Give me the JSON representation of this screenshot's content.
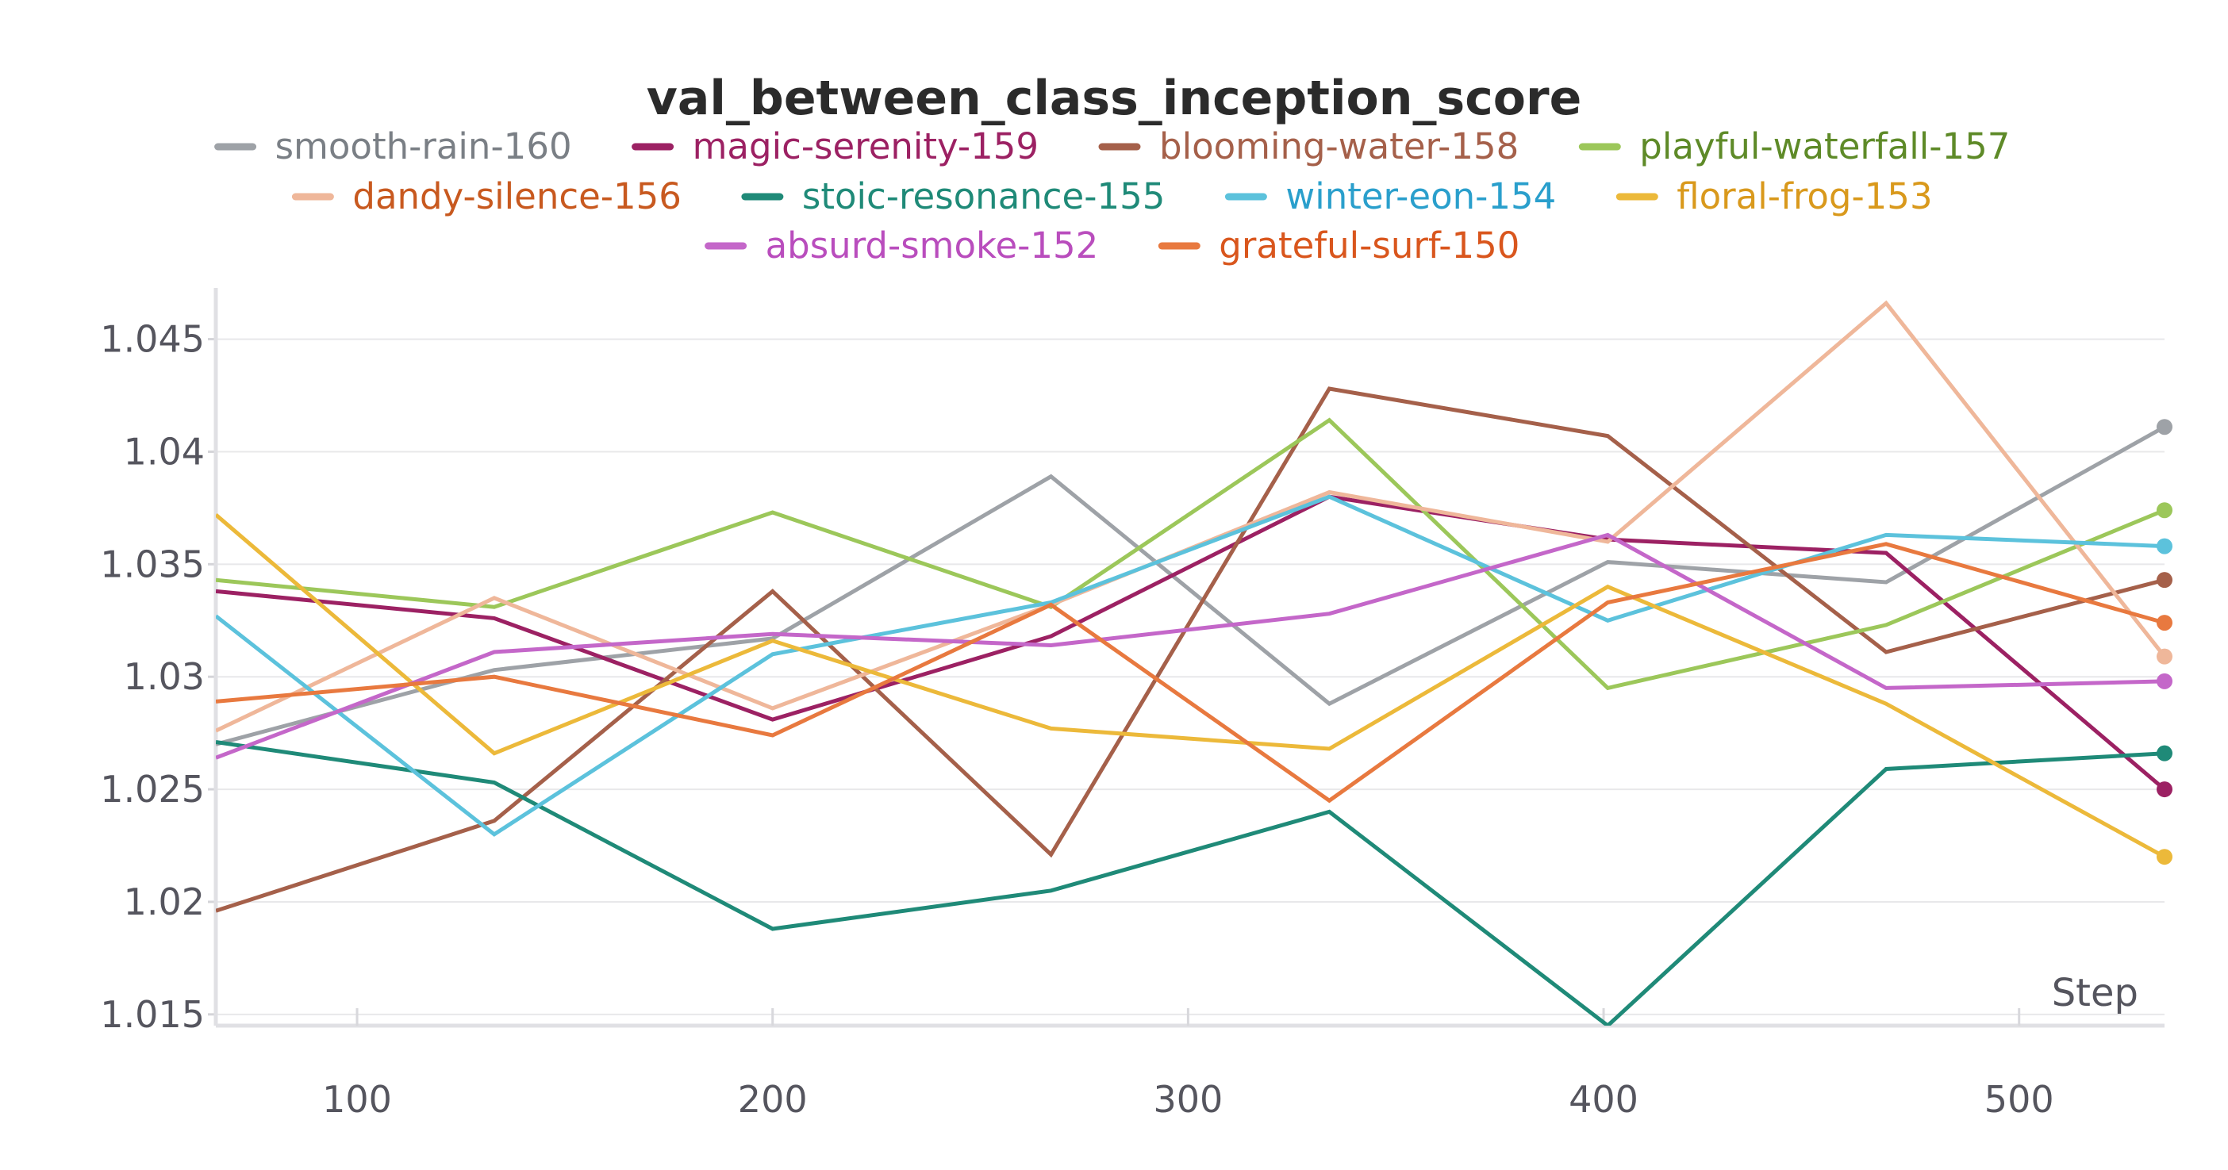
{
  "chart_data": {
    "type": "line",
    "title": "val_between_class_inception_score",
    "xlabel": "Step",
    "ylabel": "",
    "xlim": [
      66,
      535
    ],
    "ylim": [
      1.0145,
      1.0465
    ],
    "xticks": [
      100,
      200,
      300,
      400,
      500
    ],
    "yticks": [
      1.015,
      1.02,
      1.025,
      1.03,
      1.035,
      1.04,
      1.045
    ],
    "ytick_labels": [
      "1.015",
      "1.02",
      "1.025",
      "1.03",
      "1.035",
      "1.04",
      "1.045"
    ],
    "grid": true,
    "legend_position": "top",
    "x": [
      66,
      133,
      200,
      267,
      334,
      401,
      468,
      535
    ],
    "series": [
      {
        "name": "smooth-rain-160",
        "color": "#9ea2a7",
        "text_color": "#7a7f85",
        "values": [
          1.027,
          1.0303,
          1.0317,
          1.0389,
          1.0288,
          1.0351,
          1.0342,
          1.0411
        ]
      },
      {
        "name": "magic-serenity-159",
        "color": "#9c2163",
        "text_color": "#9c2163",
        "values": [
          1.0338,
          1.0326,
          1.0281,
          1.0318,
          1.038,
          1.0361,
          1.0355,
          1.025
        ]
      },
      {
        "name": "blooming-water-158",
        "color": "#a5604a",
        "text_color": "#a5604a",
        "values": [
          1.0196,
          1.0236,
          1.0338,
          1.0221,
          1.0428,
          1.0407,
          1.0311,
          1.0343
        ]
      },
      {
        "name": "playful-waterfall-157",
        "color": "#9cc75a",
        "text_color": "#5e8a28",
        "values": [
          1.0343,
          1.0331,
          1.0373,
          1.0331,
          1.0414,
          1.0295,
          1.0323,
          1.0374
        ]
      },
      {
        "name": "dandy-silence-156",
        "color": "#efb79a",
        "text_color": "#c8591f",
        "values": [
          1.0276,
          1.0335,
          1.0286,
          1.0332,
          1.0382,
          1.036,
          1.0466,
          1.0309
        ]
      },
      {
        "name": "stoic-resonance-155",
        "color": "#1f8a78",
        "text_color": "#1f8a78",
        "values": [
          1.0271,
          1.0253,
          1.0188,
          1.0205,
          1.024,
          1.0145,
          1.0259,
          1.0266
        ]
      },
      {
        "name": "winter-eon-154",
        "color": "#5cc2dc",
        "text_color": "#2a9fcc",
        "values": [
          1.0327,
          1.023,
          1.031,
          1.0333,
          1.038,
          1.0325,
          1.0363,
          1.0358
        ]
      },
      {
        "name": "floral-frog-153",
        "color": "#ecb93a",
        "text_color": "#d9991c",
        "values": [
          1.0372,
          1.0266,
          1.0316,
          1.0277,
          1.0268,
          1.034,
          1.0288,
          1.022
        ]
      },
      {
        "name": "absurd-smoke-152",
        "color": "#c467c9",
        "text_color": "#b94dbd",
        "values": [
          1.0264,
          1.0311,
          1.0319,
          1.0314,
          1.0328,
          1.0363,
          1.0295,
          1.0298
        ]
      },
      {
        "name": "grateful-surf-150",
        "color": "#e8793f",
        "text_color": "#d9561d",
        "values": [
          1.0289,
          1.03,
          1.0274,
          1.0332,
          1.0245,
          1.0333,
          1.0359,
          1.0324
        ]
      }
    ]
  }
}
